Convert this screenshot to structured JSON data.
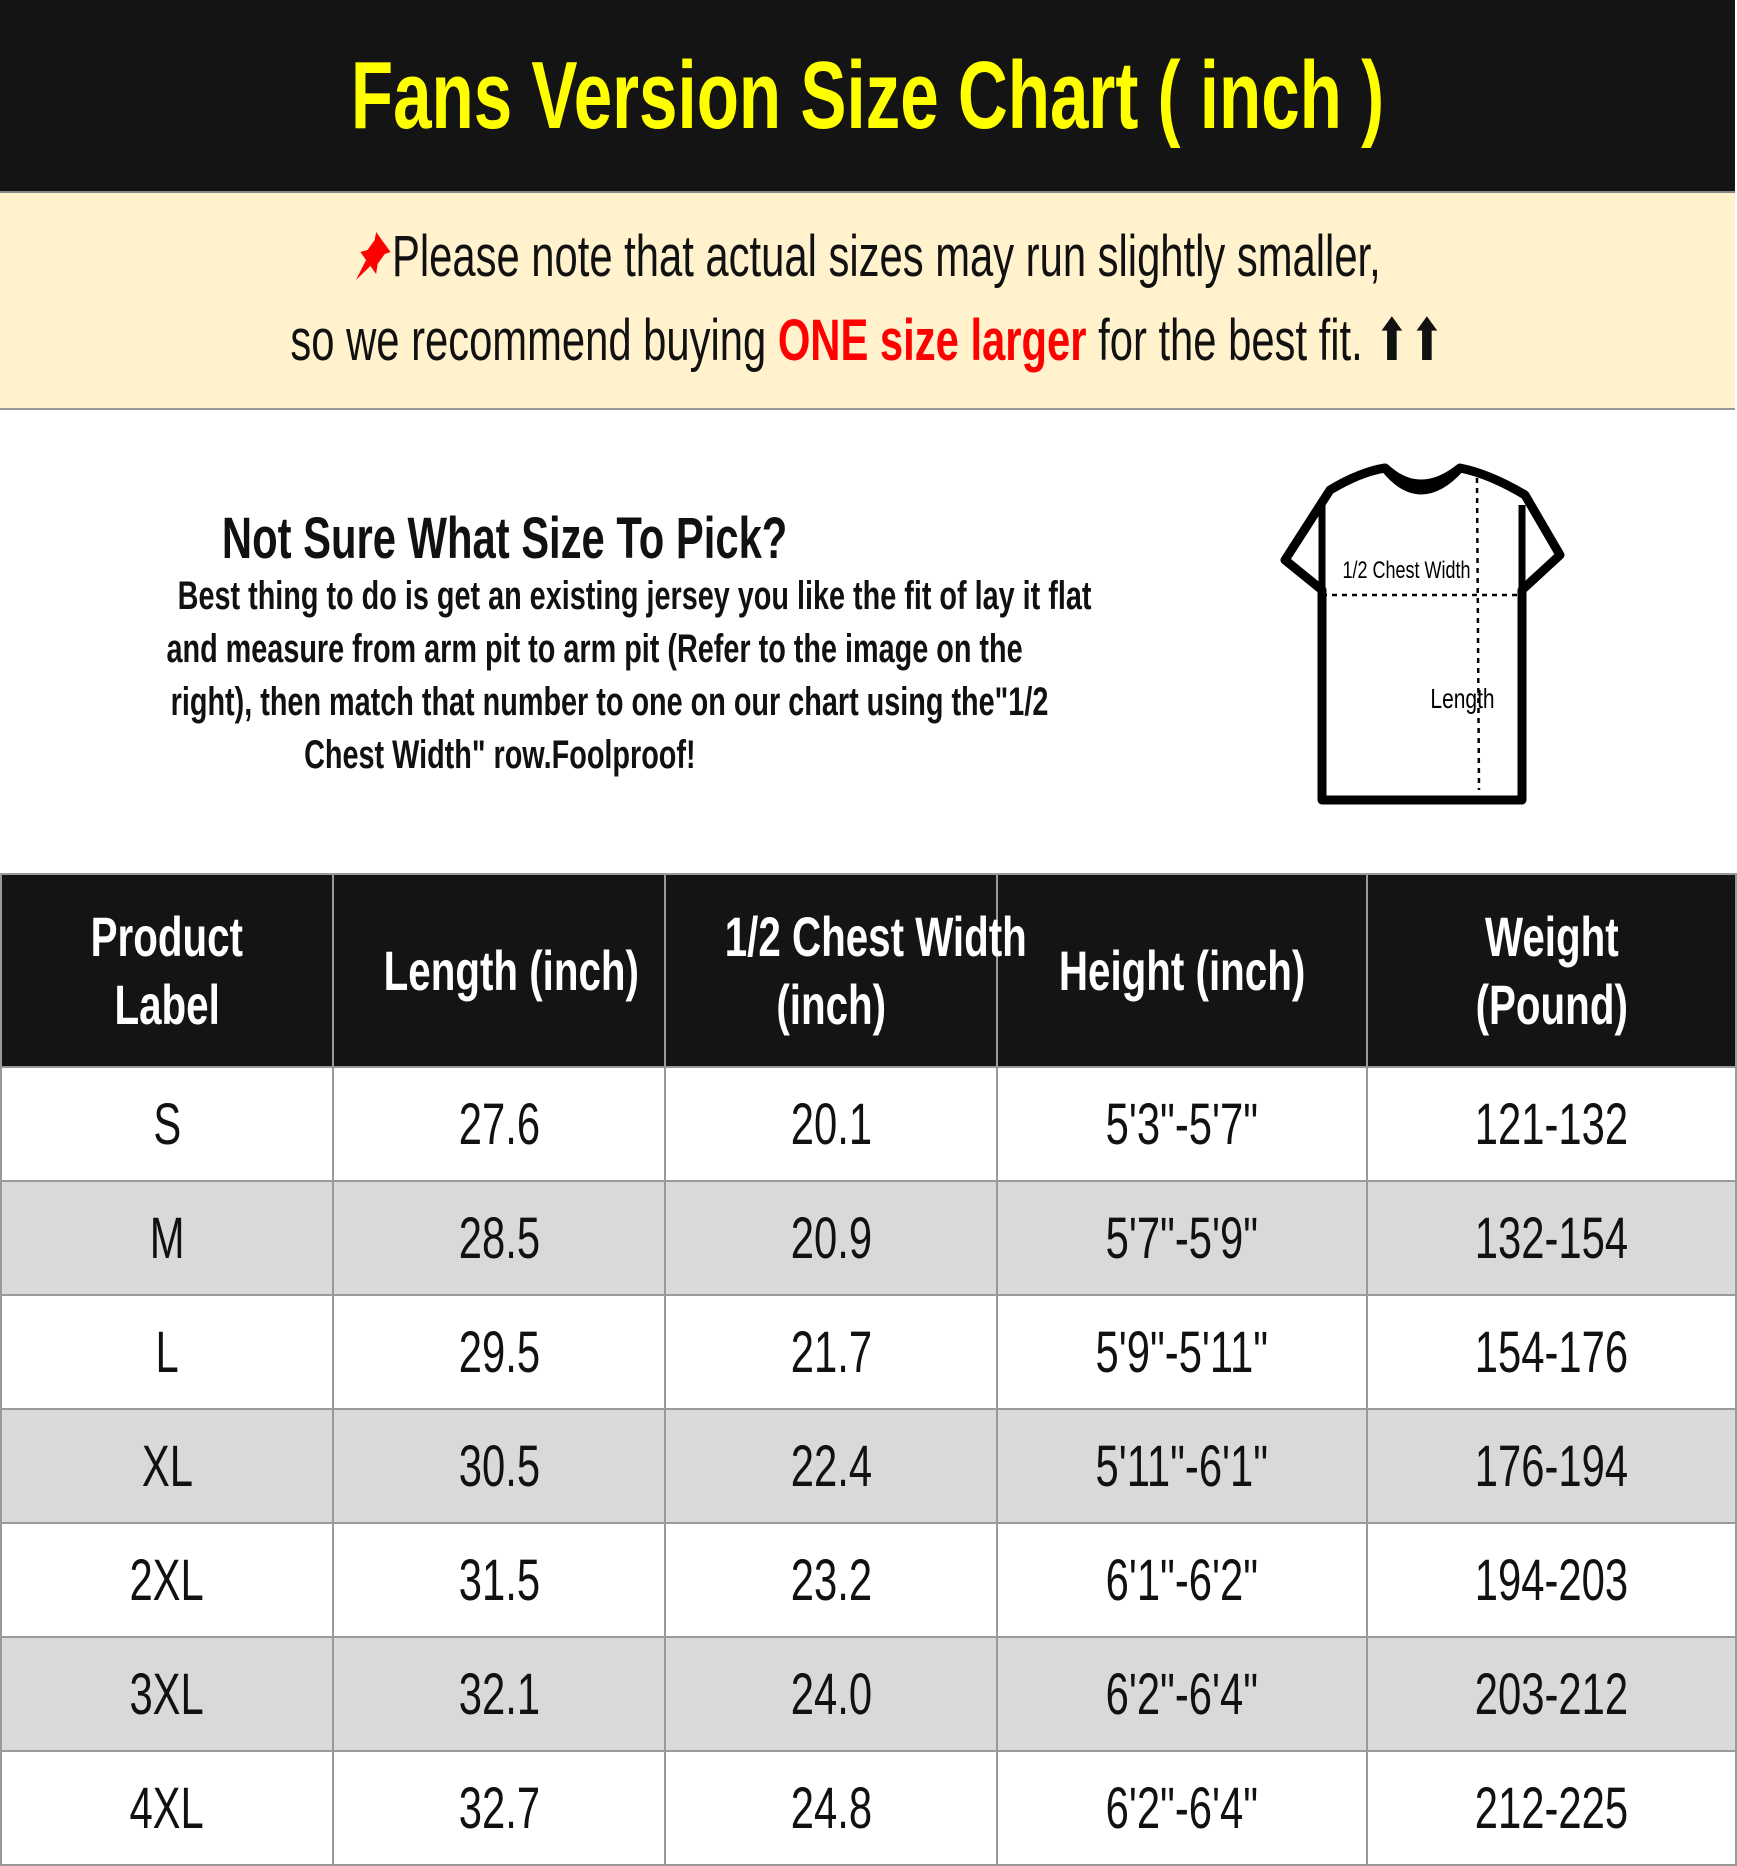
{
  "title": "Fans Version Size Chart ( inch )",
  "notice": {
    "icon": "pushpin-icon",
    "line1": "Please note that actual sizes may run slightly smaller,",
    "line2_before": "so we recommend buying ",
    "line2_highlight": "ONE size larger",
    "line2_after": " for the best fit. ⬆⬆",
    "highlight_color": "#ff0000"
  },
  "guide": {
    "heading": "Not Sure What Size To Pick?",
    "lines": [
      "Best thing to do is get an existing jersey you like the fit of lay it flat",
      "and measure from arm pit to arm pit (Refer to the image on the",
      "right), then match that number to one on our chart using the\"1/2",
      "Chest Width\" row.Foolproof!"
    ],
    "diagram": {
      "chest_label": "1/2 Chest Width",
      "length_label": "Length"
    }
  },
  "table": {
    "headers": [
      [
        "Product",
        "Label"
      ],
      [
        "Length (inch)"
      ],
      [
        "1/2 Chest Width",
        "(inch)"
      ],
      [
        "Height (inch)"
      ],
      [
        "Weight",
        "(Pound)"
      ]
    ],
    "rows": [
      [
        "S",
        "27.6",
        "20.1",
        "5'3\"-5'7\"",
        "121-132"
      ],
      [
        "M",
        "28.5",
        "20.9",
        "5'7\"-5'9\"",
        "132-154"
      ],
      [
        "L",
        "29.5",
        "21.7",
        "5'9\"-5'11\"",
        "154-176"
      ],
      [
        "XL",
        "30.5",
        "22.4",
        "5'11\"-6'1\"",
        "176-194"
      ],
      [
        "2XL",
        "31.5",
        "23.2",
        "6'1\"-6'2\"",
        "194-203"
      ],
      [
        "3XL",
        "32.1",
        "24.0",
        "6'2\"-6'4\"",
        "203-212"
      ],
      [
        "4XL",
        "32.7",
        "24.8",
        "6'2\"-6'4\"",
        "212-225"
      ]
    ]
  },
  "colors": {
    "header_bg": "#141414",
    "title": "#ffff00",
    "notice_bg": "#fff2cc",
    "alt_row": "#d9d9d9"
  }
}
